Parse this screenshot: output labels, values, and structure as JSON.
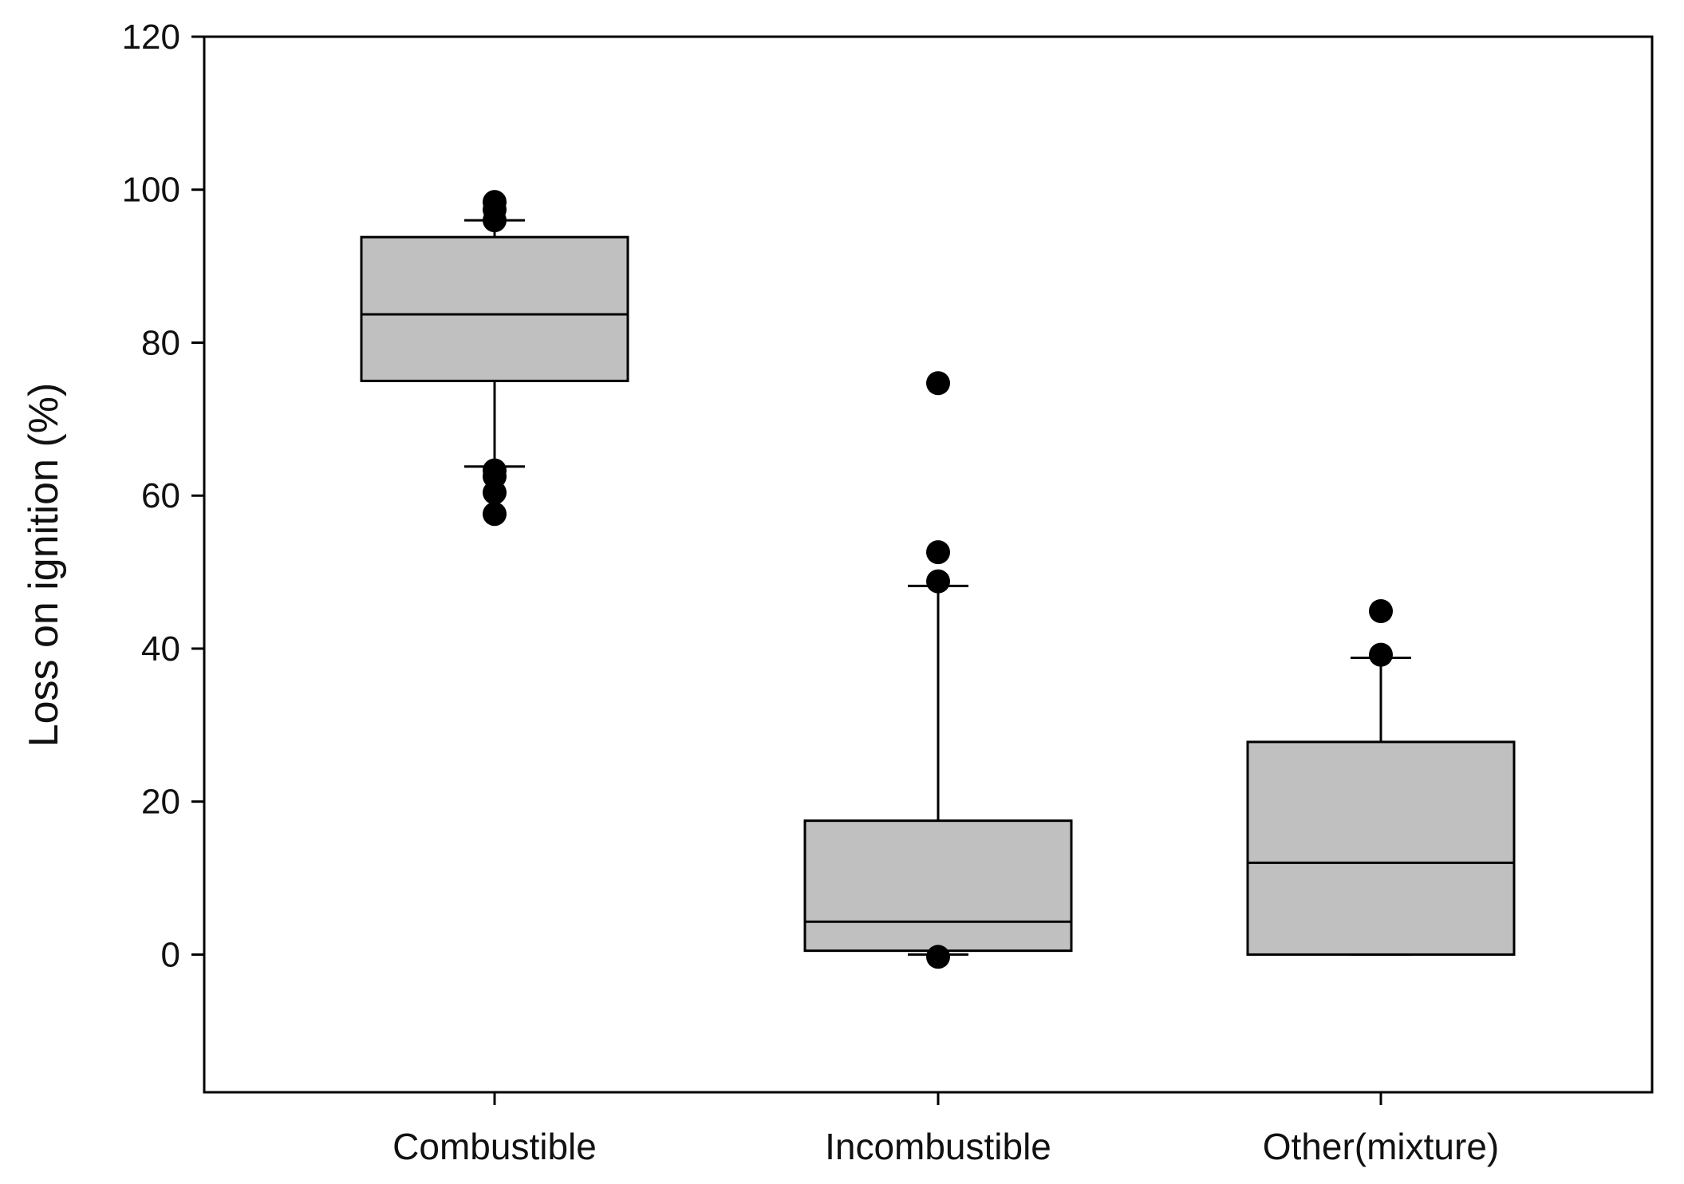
{
  "chart_data": {
    "type": "box",
    "title": "",
    "xlabel": "",
    "ylabel": "Loss on ignition (%)",
    "ylim": [
      -18,
      120
    ],
    "yticks": [
      0,
      20,
      40,
      60,
      80,
      100,
      120
    ],
    "grid": false,
    "legend": "none",
    "colors": {
      "box_fill": "#c0c0c0",
      "stroke": "#000000",
      "outlier": "#000000"
    },
    "categories": [
      "Combustible",
      "Incombustible",
      "Other(mixture)"
    ],
    "boxes": [
      {
        "q1": 75,
        "median": 83.7,
        "q3": 93.8,
        "whisker_low": 63.8,
        "whisker_high": 96,
        "outliers": [
          57.6,
          60.4,
          62.5,
          63.3,
          96,
          97.4,
          98.4
        ]
      },
      {
        "q1": 0.5,
        "median": 4.3,
        "q3": 17.5,
        "whisker_low": 0,
        "whisker_high": 48.2,
        "outliers": [
          -0.3,
          48.8,
          52.6,
          74.7
        ]
      },
      {
        "q1": 0,
        "median": 12,
        "q3": 27.8,
        "whisker_low": 0,
        "whisker_high": 38.8,
        "outliers": [
          39.2,
          44.9
        ]
      }
    ]
  }
}
